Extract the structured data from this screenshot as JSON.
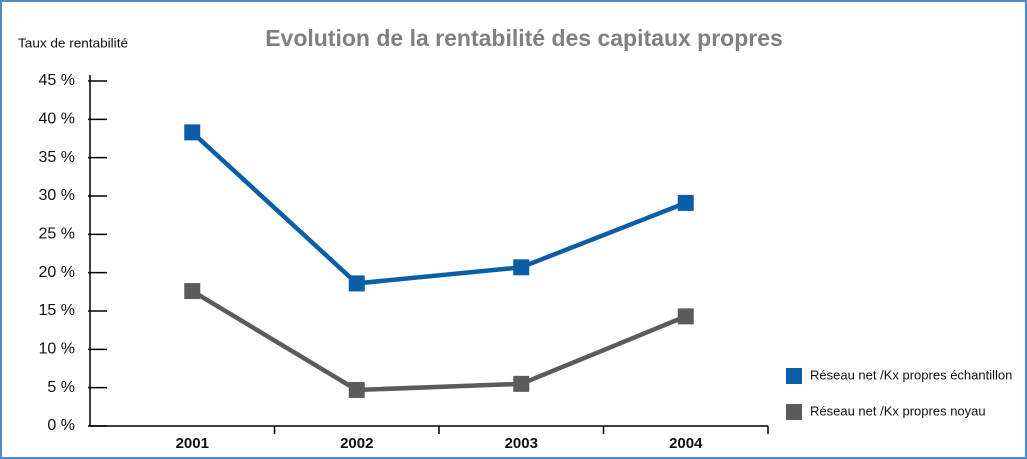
{
  "chart_data": {
    "type": "line",
    "title": "Evolution de la rentabilité des capitaux propres",
    "y_label": "Taux de rentabilité",
    "categories": [
      "2001",
      "2002",
      "2003",
      "2004"
    ],
    "series": [
      {
        "name": "Réseau net /Kx propres échantillon",
        "color": "#0a5ea8",
        "values": [
          38.3,
          18.6,
          20.7,
          29.1
        ]
      },
      {
        "name": "Réseau net /Kx propres noyau",
        "color": "#5b5b5b",
        "values": [
          17.6,
          4.7,
          5.5,
          14.3
        ]
      }
    ],
    "ylim": [
      0,
      45
    ],
    "yticks": [
      {
        "value": 0,
        "label": "0 %"
      },
      {
        "value": 5,
        "label": "5 %"
      },
      {
        "value": 10,
        "label": "10 %"
      },
      {
        "value": 15,
        "label": "15 %"
      },
      {
        "value": 20,
        "label": "20 %"
      },
      {
        "value": 25,
        "label": "25 %"
      },
      {
        "value": 30,
        "label": "30 %"
      },
      {
        "value": 35,
        "label": "35 %"
      },
      {
        "value": 40,
        "label": "40 %"
      },
      {
        "value": 45,
        "label": "45 %"
      }
    ],
    "legend": "lower right"
  }
}
